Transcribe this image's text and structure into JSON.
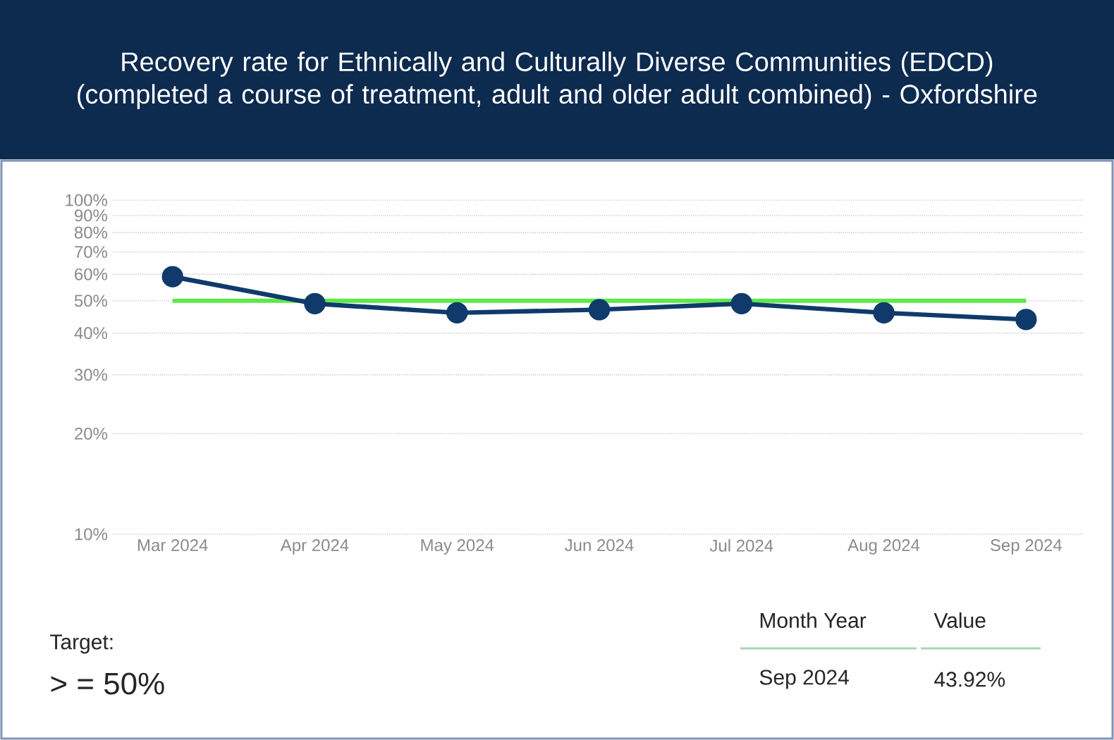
{
  "chart_data": {
    "type": "line",
    "title": "Recovery rate for Ethnically and Culturally Diverse Communities (EDCD) (completed a course of treatment, adult and older adult combined) - Oxfordshire",
    "categories": [
      "Mar 2024",
      "Apr 2024",
      "May 2024",
      "Jun 2024",
      "Jul 2024",
      "Aug 2024",
      "Sep 2024"
    ],
    "series": [
      {
        "color": "#0f3a6b",
        "values": [
          59,
          49,
          46,
          47,
          49,
          46,
          43.92
        ]
      }
    ],
    "ylim": [
      10,
      100
    ],
    "log": "y",
    "yticks": [
      {
        "value": 10,
        "label": "10%"
      },
      {
        "value": 20,
        "label": "20%"
      },
      {
        "value": 30,
        "label": "30%"
      },
      {
        "value": 40,
        "label": "40%"
      },
      {
        "value": 50,
        "label": "50%"
      },
      {
        "value": 60,
        "label": "60%"
      },
      {
        "value": 70,
        "label": "70%"
      },
      {
        "value": 80,
        "label": "80%"
      },
      {
        "value": 90,
        "label": "90%"
      },
      {
        "value": 100,
        "label": "100%"
      }
    ],
    "grid": "y",
    "marker": "circle",
    "line_style": "solid",
    "ref_lines": [
      {
        "axis": "y",
        "value": 50,
        "color": "#5ee84a"
      }
    ],
    "annotations": [
      "Target:",
      "> = 50%",
      "Month Year",
      "Value",
      "Sep 2024",
      "43.92%"
    ]
  }
}
